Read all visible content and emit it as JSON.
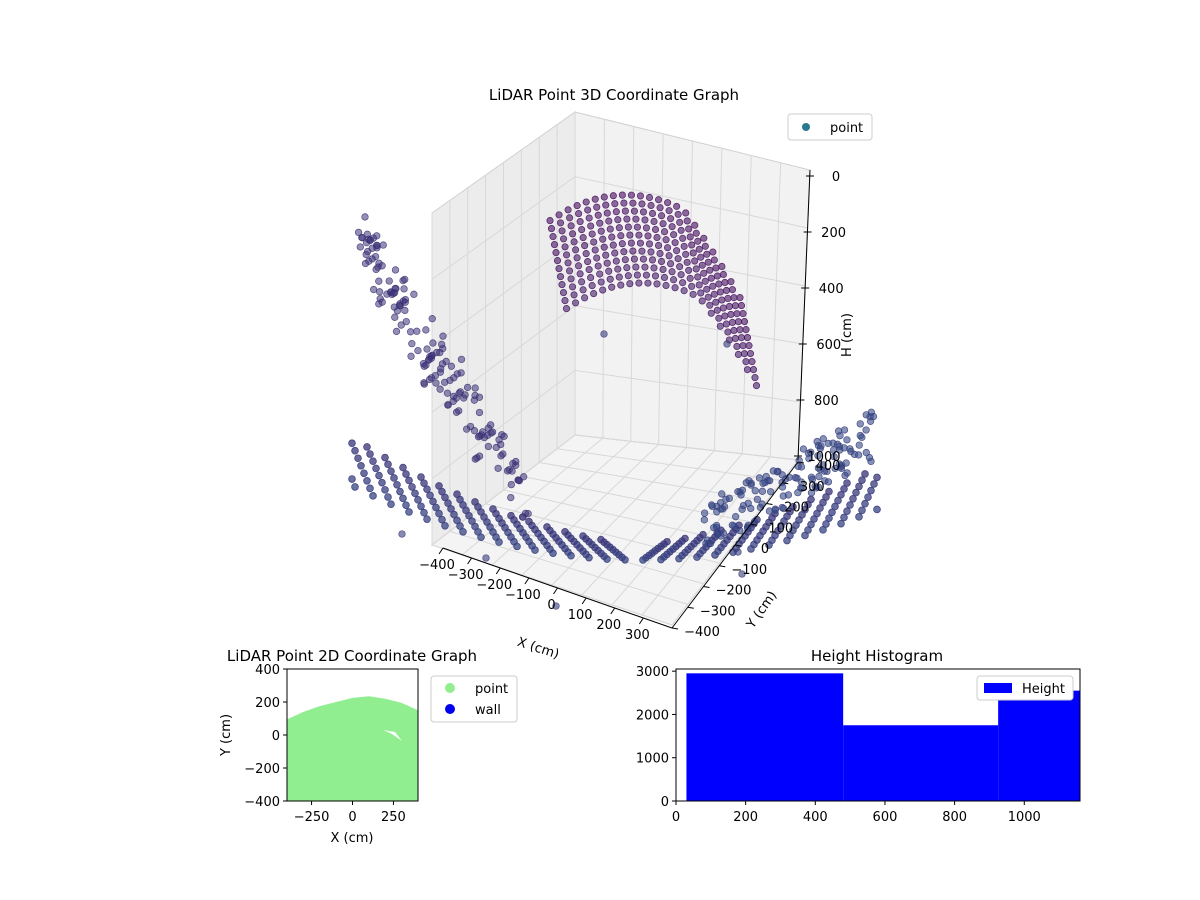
{
  "chart_data": [
    {
      "type": "scatter",
      "projection": "3d",
      "title": "LiDAR Point 3D Coordinate Graph",
      "xlabel": "X (cm)",
      "ylabel": "Y (cm)",
      "zlabel": "H (cm)",
      "xlim": [
        -400,
        400
      ],
      "ylim": [
        -400,
        400
      ],
      "zlim": [
        1000,
        0
      ],
      "x_ticks": [
        "−400",
        "−300",
        "−200",
        "−100",
        "0",
        "100",
        "200",
        "300"
      ],
      "y_ticks": [
        "−400",
        "−300",
        "−200",
        "−100",
        "0",
        "100",
        "200",
        "300",
        "400"
      ],
      "z_ticks": [
        "0",
        "200",
        "400",
        "600",
        "800",
        "1000"
      ],
      "grid": true,
      "legend": {
        "placement": "top-right",
        "entries": [
          {
            "label": "point",
            "color": "#2a788e"
          }
        ]
      },
      "colormap": "viridis",
      "groups": [
        {
          "description_h": "ceiling cluster",
          "x_range": [
            -300,
            300
          ],
          "y_range": [
            -100,
            300
          ],
          "h_range": [
            30,
            420
          ]
        },
        {
          "description_h": "bowl-shaped floor/wall sweep",
          "x_range": [
            -400,
            400
          ],
          "y_range": [
            -400,
            400
          ],
          "h_range": [
            550,
            1000
          ]
        }
      ]
    },
    {
      "type": "scatter",
      "title": "LiDAR Point 2D Coordinate Graph",
      "xlabel": "X (cm)",
      "ylabel": "Y (cm)",
      "xlim": [
        -400,
        400
      ],
      "ylim": [
        -400,
        400
      ],
      "x_ticks": [
        "−250",
        "0",
        "250"
      ],
      "y_ticks": [
        "−400",
        "−200",
        "0",
        "200",
        "400"
      ],
      "legend": {
        "placement": "outside-right",
        "entries": [
          {
            "label": "point",
            "color": "#90ee90"
          },
          {
            "label": "wall",
            "color": "#0000ee"
          }
        ]
      },
      "series": [
        {
          "name": "point",
          "color": "#90ee90",
          "boundary_top": {
            "x": [
              -400,
              -300,
              -200,
              -100,
              0,
              100,
              200,
              300,
              400
            ],
            "y": [
              95,
              140,
              175,
              200,
              225,
              235,
              220,
              195,
              150
            ]
          },
          "boundary_bottom_y": -400
        },
        {
          "name": "wall",
          "color": "#0000ee",
          "points": []
        }
      ]
    },
    {
      "type": "bar",
      "subtype": "histogram",
      "title": "Height Histogram",
      "xlim": [
        0,
        1160
      ],
      "ylim": [
        0,
        3050
      ],
      "x_ticks": [
        "0",
        "200",
        "400",
        "600",
        "800",
        "1000"
      ],
      "y_ticks": [
        "0",
        "1000",
        "2000",
        "3000"
      ],
      "legend": {
        "placement": "top-right",
        "entries": [
          {
            "label": "Height",
            "color": "#0000ff"
          }
        ]
      },
      "bins": [
        {
          "start": 30,
          "end": 480,
          "count": 2950
        },
        {
          "start": 480,
          "end": 925,
          "count": 1750
        },
        {
          "start": 925,
          "end": 1160,
          "count": 2550
        }
      ],
      "color": "#0000ff"
    }
  ]
}
